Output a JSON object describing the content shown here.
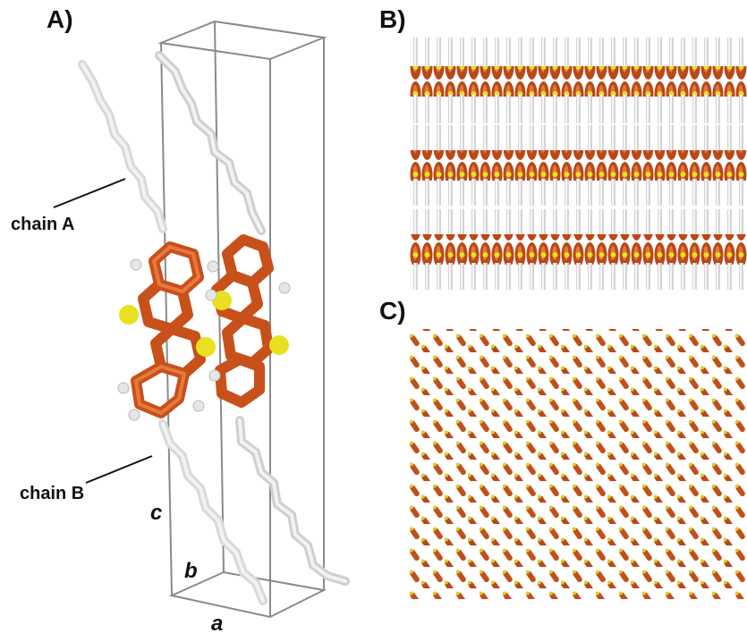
{
  "panels": {
    "a": {
      "label": "A)"
    },
    "b": {
      "label": "B)"
    },
    "c": {
      "label": "C)"
    }
  },
  "annotations": {
    "chain_a": "chain A",
    "chain_b": "chain B"
  },
  "axes": {
    "a": "a",
    "b": "b",
    "c": "c"
  },
  "colors": {
    "carbon_aromatic": "#c8501a",
    "sulfur": "#e8e020",
    "alkyl": "#d9d9d9",
    "cell": "#8a8a8a"
  }
}
